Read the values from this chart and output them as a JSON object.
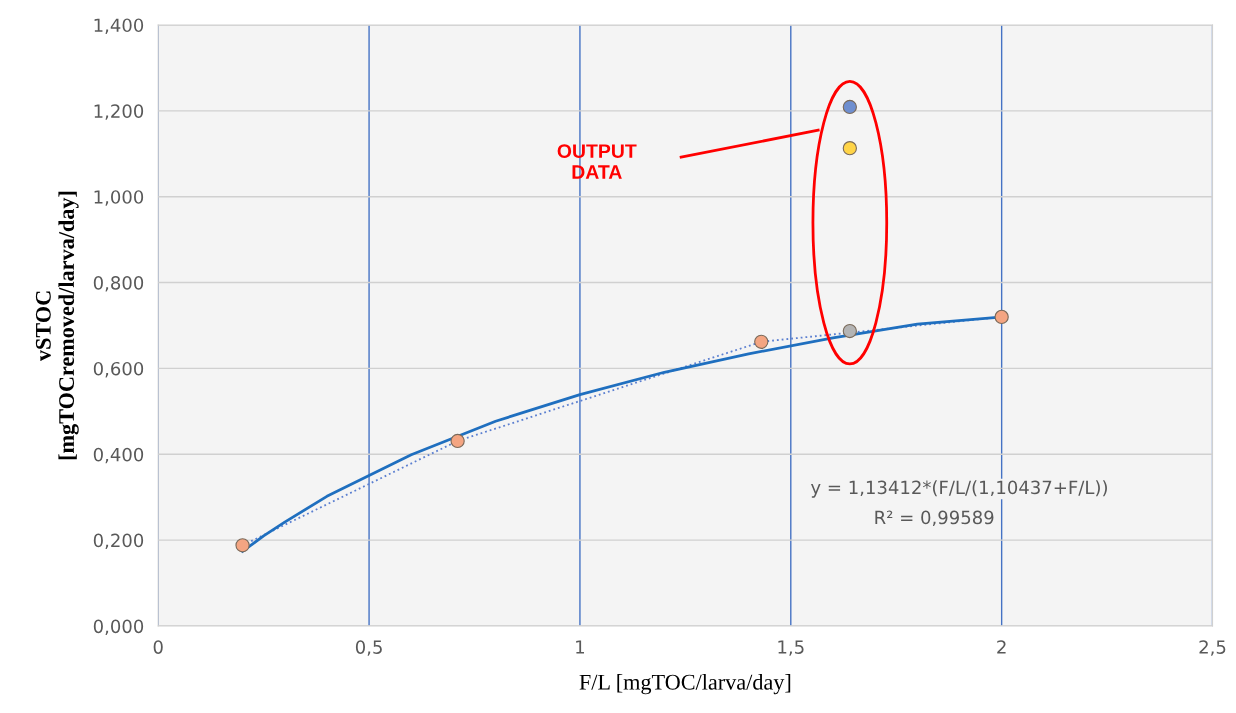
{
  "chart_data": {
    "type": "scatter",
    "xlabel": "F/L [mgTOC/larva/day]",
    "ylabel": "vSTOC\n[mgTOCremoved/larva/day]",
    "xlim": [
      0,
      2.5
    ],
    "ylim": [
      0,
      1.4
    ],
    "xticks": [
      0,
      {
        "value": 0.5,
        "label": "0,5"
      },
      1,
      {
        "value": 1.5,
        "label": "1,5"
      },
      2,
      {
        "value": 2.5,
        "label": "2,5"
      }
    ],
    "yticks": [
      {
        "value": 0,
        "label": "0,000"
      },
      {
        "value": 0.2,
        "label": "0,200"
      },
      {
        "value": 0.4,
        "label": "0,400"
      },
      {
        "value": 0.6,
        "label": "0,600"
      },
      {
        "value": 0.8,
        "label": "0,800"
      },
      {
        "value": 1.0,
        "label": "1,000"
      },
      {
        "value": 1.2,
        "label": "1,200"
      },
      {
        "value": 1.4,
        "label": "1,400"
      }
    ],
    "grid": true,
    "series": [
      {
        "type": "line",
        "line_style": "dotted",
        "marker": "none",
        "color": "#5b7fd0",
        "x": [
          0.2,
          0.71,
          1.43,
          2.0
        ],
        "values": [
          0.188,
          0.431,
          0.662,
          0.72
        ]
      },
      {
        "type": "line",
        "line_style": "solid",
        "marker": "none",
        "color": "#1f6fbf",
        "x": [
          0.2,
          0.25,
          0.3,
          0.4,
          0.6,
          0.8,
          1.0,
          1.2,
          1.4,
          1.6,
          1.8,
          2.0
        ],
        "values": [
          0.174,
          0.21,
          0.242,
          0.302,
          0.399,
          0.477,
          0.539,
          0.591,
          0.634,
          0.671,
          0.703,
          0.72
        ]
      },
      {
        "marker": "circle",
        "color": "#f4a582",
        "x": [
          0.2,
          0.71,
          1.43,
          2.0
        ],
        "values": [
          0.188,
          0.431,
          0.662,
          0.72
        ]
      },
      {
        "marker": "circle",
        "color": "#b4b4b4",
        "x": [
          1.64
        ],
        "values": [
          0.687
        ]
      },
      {
        "marker": "circle",
        "color": "#ffd447",
        "x": [
          1.64
        ],
        "values": [
          1.113
        ]
      },
      {
        "marker": "circle",
        "color": "#6f8fd0",
        "x": [
          1.64
        ],
        "values": [
          1.209
        ]
      }
    ],
    "annotations": [
      "OUTPUT\nDATA",
      "y = 1,13412*(F/L/(1,10437+F/L))",
      "R² = 0,99589"
    ]
  }
}
